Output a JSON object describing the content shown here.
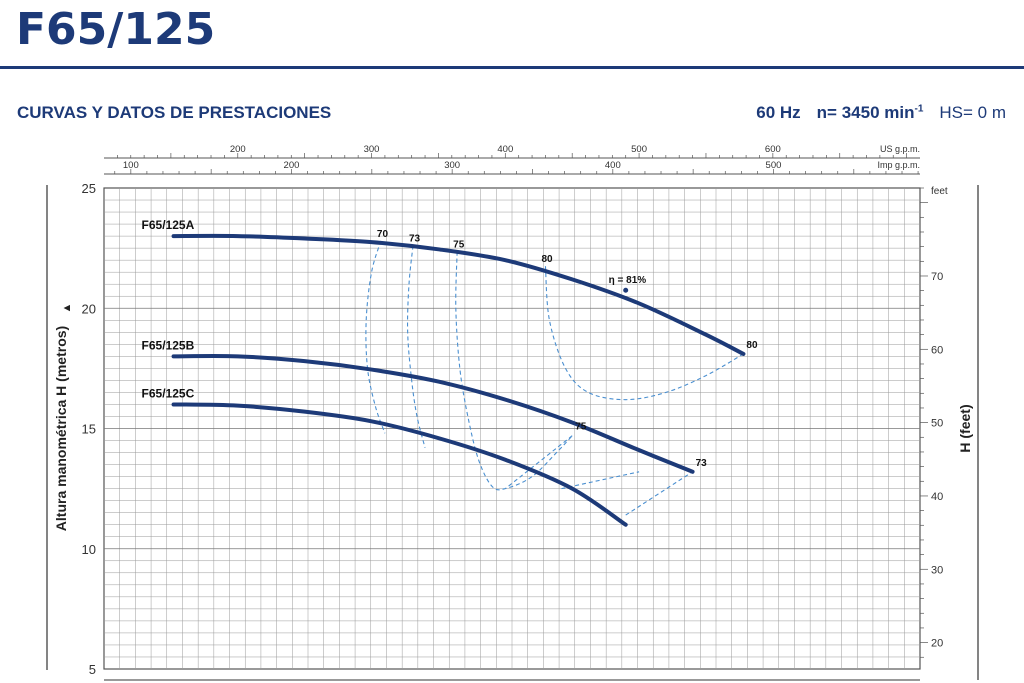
{
  "header": {
    "title": "F65/125",
    "section_title": "CURVAS Y DATOS DE PRESTACIONES",
    "frequency": "60 Hz",
    "speed_label": "n= 3450 min",
    "speed_exponent": "-1",
    "hs": "HS= 0 m"
  },
  "colors": {
    "brand": "#1d3a78",
    "curve": "#1d3a78",
    "efficiency": "#4a8fd0",
    "grid": "#9a9a9a"
  },
  "chart_data": {
    "type": "line",
    "ylabel": "Altura manométrica H (metros)",
    "ylabel_arrow": "▲",
    "y2label": "H (feet)",
    "y2unit": "feet",
    "x_top1_unit": "US g.p.m.",
    "x_top2_unit": "Imp g.p.m.",
    "ylim": [
      5,
      25
    ],
    "yticks": [
      5,
      10,
      15,
      20,
      25
    ],
    "y2lim_feet": [
      16.4,
      82.0
    ],
    "y2ticks": [
      20,
      30,
      40,
      50,
      60,
      70
    ],
    "x_us_gpm_lim": [
      100,
      710
    ],
    "x_us_gpm_ticks": [
      200,
      300,
      400,
      500,
      600
    ],
    "x_imp_gpm_lim": [
      83.3,
      591.2
    ],
    "x_imp_gpm_ticks": [
      100,
      200,
      300,
      400,
      500
    ],
    "grid": true,
    "series": [
      {
        "name": "F65/125A",
        "x_us_gpm": [
          152,
          200,
          250,
          300,
          350,
          400,
          450,
          500,
          550,
          578
        ],
        "y_m": [
          23.0,
          23.0,
          22.9,
          22.75,
          22.45,
          22.0,
          21.2,
          20.2,
          18.9,
          18.1
        ]
      },
      {
        "name": "F65/125B",
        "x_us_gpm": [
          152,
          200,
          250,
          300,
          350,
          400,
          450,
          500,
          540
        ],
        "y_m": [
          18.0,
          18.0,
          17.8,
          17.45,
          16.95,
          16.2,
          15.25,
          14.1,
          13.2
        ]
      },
      {
        "name": "F65/125C",
        "x_us_gpm": [
          152,
          200,
          250,
          300,
          350,
          400,
          450,
          490
        ],
        "y_m": [
          16.0,
          15.95,
          15.7,
          15.3,
          14.6,
          13.7,
          12.5,
          11.0
        ]
      }
    ],
    "efficiency_curves": [
      {
        "label": "70",
        "label_point": [
          307,
          22.8
        ],
        "points": [
          [
            307,
            22.8
          ],
          [
            300,
            21.5
          ],
          [
            296,
            19.5
          ],
          [
            297,
            17.5
          ],
          [
            303,
            15.9
          ],
          [
            310,
            14.8
          ]
        ]
      },
      {
        "label": "73",
        "label_point": [
          331,
          22.6
        ],
        "points": [
          [
            331,
            22.6
          ],
          [
            328,
            21.0
          ],
          [
            327,
            19.0
          ],
          [
            330,
            17.0
          ],
          [
            334,
            15.5
          ],
          [
            340,
            14.2
          ]
        ]
      },
      {
        "label": "75",
        "label_point": [
          364,
          22.35
        ],
        "points": [
          [
            364,
            22.35
          ],
          [
            363,
            20.0
          ],
          [
            366,
            17.5
          ],
          [
            372,
            15.5
          ],
          [
            380,
            13.7
          ],
          [
            390,
            12.6
          ],
          [
            400,
            12.5
          ],
          [
            420,
            13.0
          ],
          [
            440,
            14.1
          ],
          [
            450,
            14.7
          ]
        ]
      },
      {
        "label": "80",
        "label_point": [
          430,
          21.75
        ],
        "points": [
          [
            430,
            21.75
          ],
          [
            433,
            19.5
          ],
          [
            445,
            17.5
          ],
          [
            462,
            16.5
          ],
          [
            490,
            16.2
          ],
          [
            520,
            16.5
          ],
          [
            550,
            17.2
          ],
          [
            578,
            18.1
          ]
        ]
      },
      {
        "label": "",
        "label_point": [
          490,
          13.2
        ],
        "points": [
          [
            442,
            12.5
          ],
          [
            500,
            13.2
          ]
        ]
      },
      {
        "label": "",
        "label_point": [
          450,
          14.7
        ],
        "points": [
          [
            450,
            14.7
          ],
          [
            400,
            12.5
          ]
        ]
      },
      {
        "label": "",
        "label_point": [
          500,
          13.2
        ],
        "points": [
          [
            490,
            11.4
          ],
          [
            540,
            13.2
          ]
        ]
      }
    ],
    "annotations": [
      {
        "text": "η = 81%",
        "at": [
          475,
          20.8
        ]
      },
      {
        "text": "80",
        "at": [
          578,
          18.1
        ]
      },
      {
        "text": "75",
        "at": [
          450,
          14.7
        ]
      },
      {
        "text": "73",
        "at": [
          540,
          13.2
        ]
      }
    ]
  }
}
